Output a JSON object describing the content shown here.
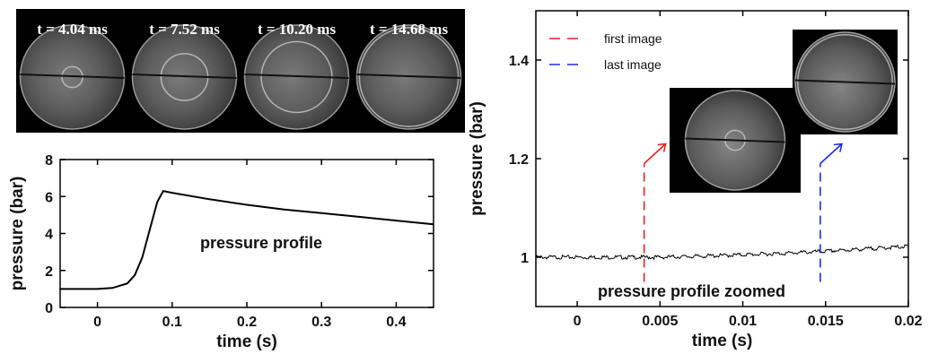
{
  "frames": {
    "labels": [
      "t = 4.04 ms",
      "t = 7.52 ms",
      "t = 10.20 ms",
      "t = 14.68 ms"
    ],
    "ring_fraction": [
      0.2,
      0.45,
      0.68,
      0.95
    ]
  },
  "chart_data": [
    {
      "type": "line",
      "title": "",
      "annotation": "pressure profile",
      "xlabel": "time (s)",
      "ylabel": "pressure (bar)",
      "xlim": [
        -0.05,
        0.45
      ],
      "ylim": [
        0,
        8
      ],
      "xticks": [
        0,
        0.1,
        0.2,
        0.3,
        0.4
      ],
      "xtick_labels": [
        "0",
        "0.1",
        "0.2",
        "0.3",
        "0.4"
      ],
      "yticks": [
        0,
        2,
        4,
        6,
        8
      ],
      "ytick_labels": [
        "0",
        "2",
        "4",
        "6",
        "8"
      ],
      "series": [
        {
          "color": "#000000",
          "x": [
            -0.05,
            0.0,
            0.02,
            0.04,
            0.05,
            0.06,
            0.07,
            0.08,
            0.088,
            0.1,
            0.15,
            0.2,
            0.25,
            0.3,
            0.35,
            0.4,
            0.45
          ],
          "y": [
            1.0,
            1.0,
            1.05,
            1.3,
            1.75,
            2.7,
            4.2,
            5.7,
            6.3,
            6.2,
            5.85,
            5.55,
            5.3,
            5.1,
            4.9,
            4.7,
            4.5
          ]
        }
      ]
    },
    {
      "type": "line",
      "title": "",
      "annotation": "pressure profile zoomed",
      "xlabel": "time (s)",
      "ylabel": "pressure (bar)",
      "xlim": [
        -0.0025,
        0.02
      ],
      "ylim": [
        0.9,
        1.5
      ],
      "xticks": [
        0,
        0.005,
        0.01,
        0.015,
        0.02
      ],
      "xtick_labels": [
        "0",
        "0.005",
        "0.01",
        "0.015",
        "0.02"
      ],
      "yticks": [
        1,
        1.2,
        1.4
      ],
      "ytick_labels": [
        "1",
        "1.2",
        "1.4"
      ],
      "series": [
        {
          "color": "#000000",
          "x": [
            -0.0025,
            0.0,
            0.0025,
            0.005,
            0.0075,
            0.01,
            0.0125,
            0.015,
            0.0175,
            0.02
          ],
          "y": [
            1.0,
            1.0,
            1.0,
            1.0,
            1.002,
            1.005,
            1.008,
            1.012,
            1.017,
            1.022
          ]
        }
      ],
      "legend": {
        "position": "top-left",
        "entries": [
          {
            "label": "first image",
            "color": "#e8211c"
          },
          {
            "label": "last image",
            "color": "#1c2be8"
          }
        ]
      },
      "markers": [
        {
          "x": 0.00404,
          "color": "#e8211c"
        },
        {
          "x": 0.01468,
          "color": "#1c2be8"
        }
      ]
    }
  ]
}
